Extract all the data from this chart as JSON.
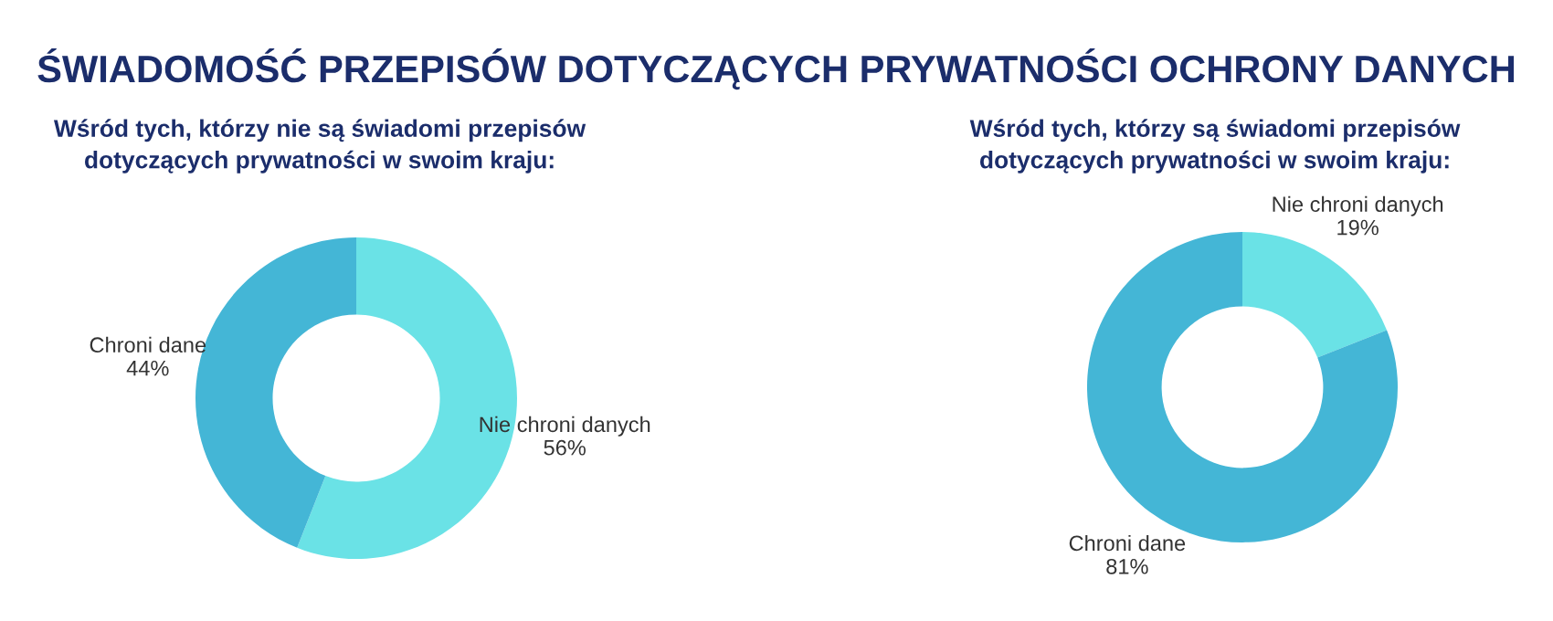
{
  "chart_data": [
    {
      "type": "donut",
      "title": "ŚWIADOMOŚĆ PRZEPISÓW DOTYCZĄCYCH PRYWATNOŚCI OCHRONY DANYCH",
      "subtitle": "Wśród tych, którzy nie są świadomi przepisów\ndotyczących prywatności w swoim kraju:",
      "categories": [
        "Nie chroni danych",
        "Chroni dane"
      ],
      "values": [
        56,
        44
      ],
      "value_labels": [
        "56%",
        "44%"
      ],
      "colors": [
        "#6ae2e6",
        "#44b6d6"
      ]
    },
    {
      "type": "donut",
      "subtitle": "Wśród tych, którzy są świadomi przepisów\ndotyczących prywatności w swoim kraju:",
      "categories": [
        "Nie chroni danych",
        "Chroni dane"
      ],
      "values": [
        19,
        81
      ],
      "value_labels": [
        "19%",
        "81%"
      ],
      "colors": [
        "#6ae2e6",
        "#44b6d6"
      ]
    }
  ]
}
